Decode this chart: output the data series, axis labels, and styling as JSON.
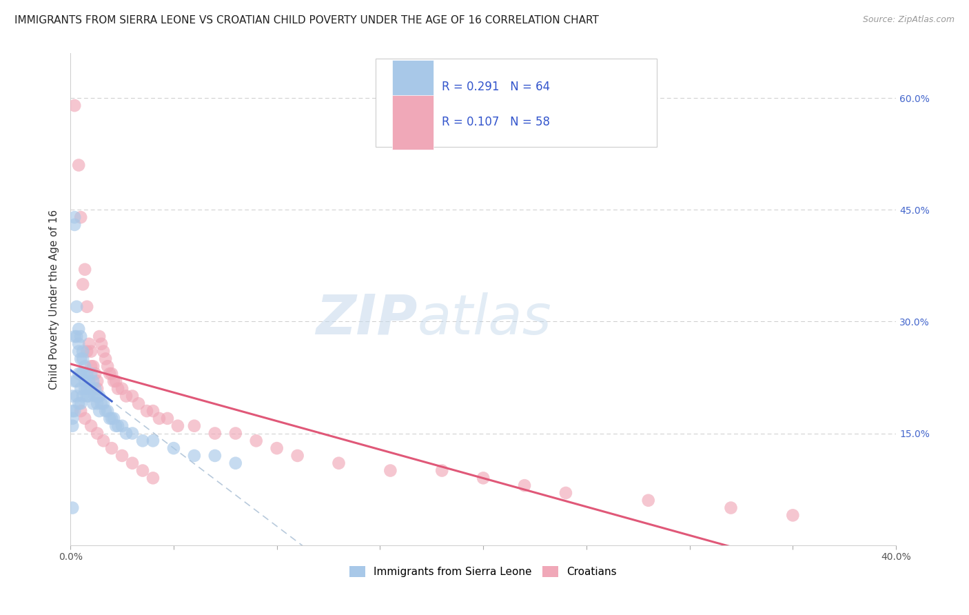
{
  "title": "IMMIGRANTS FROM SIERRA LEONE VS CROATIAN CHILD POVERTY UNDER THE AGE OF 16 CORRELATION CHART",
  "source": "Source: ZipAtlas.com",
  "ylabel": "Child Poverty Under the Age of 16",
  "xlim": [
    0.0,
    0.4
  ],
  "ylim": [
    0.0,
    0.66
  ],
  "yticks": [
    0.0,
    0.15,
    0.3,
    0.45,
    0.6
  ],
  "yticklabels_right": [
    "",
    "15.0%",
    "30.0%",
    "45.0%",
    "60.0%"
  ],
  "series1_label": "Immigrants from Sierra Leone",
  "series2_label": "Croatians",
  "series1_color": "#a8c8e8",
  "series2_color": "#f0a8b8",
  "series1_line_color": "#4466cc",
  "series2_line_color": "#e05878",
  "series1_R": 0.291,
  "series1_N": 64,
  "series2_R": 0.107,
  "series2_N": 58,
  "legend_text_color": "#3355cc",
  "watermark_color": "#d8e8f4",
  "background_color": "#ffffff",
  "grid_color": "#cccccc",
  "title_fontsize": 11,
  "axis_label_fontsize": 11,
  "tick_fontsize": 10,
  "scatter_size": 180,
  "scatter_alpha": 0.65
}
